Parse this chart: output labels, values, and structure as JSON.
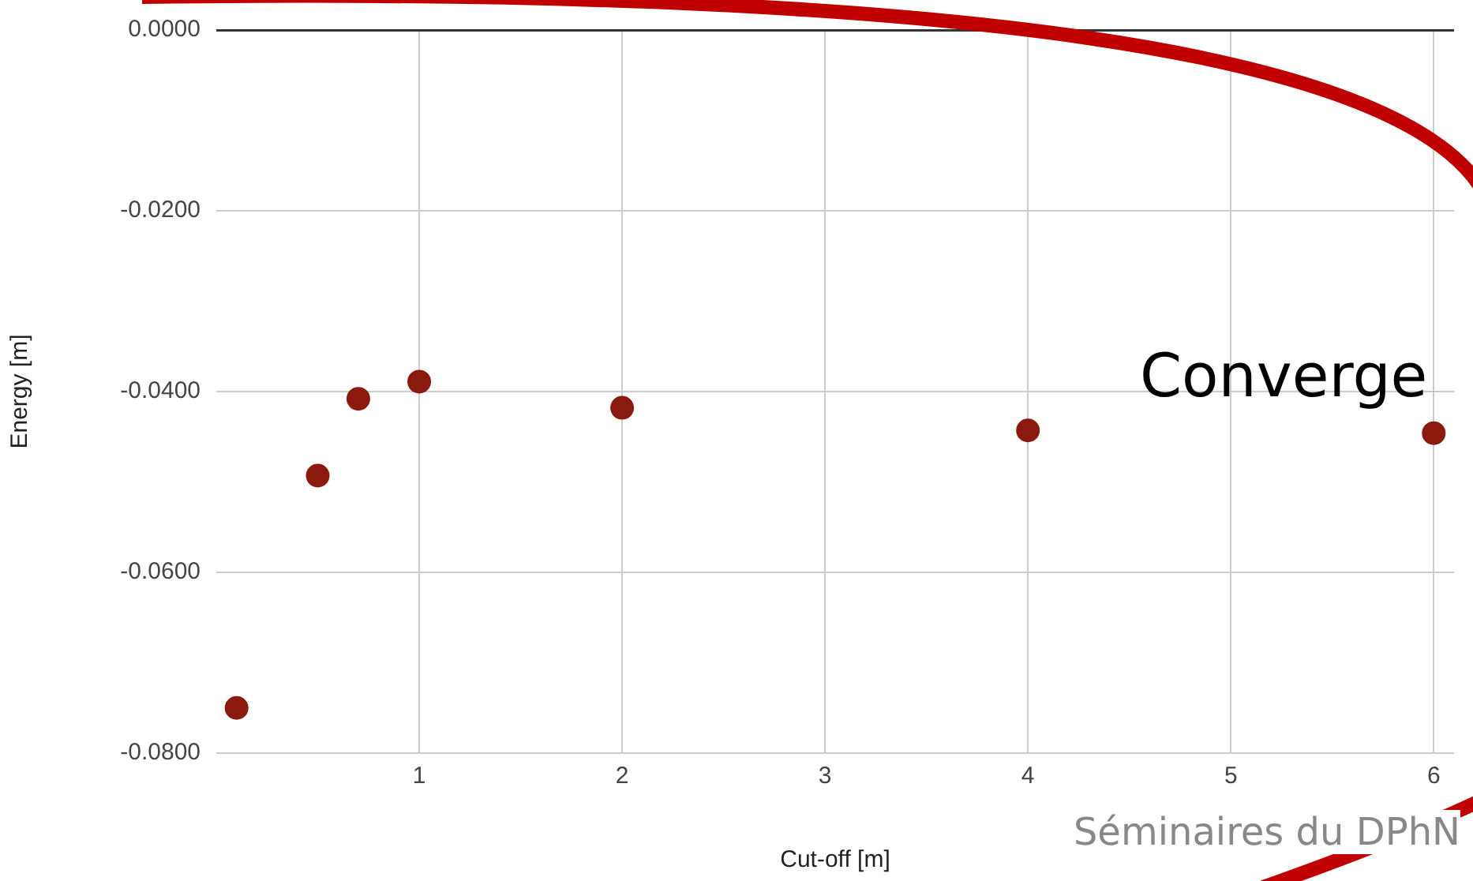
{
  "chart_data": {
    "type": "scatter",
    "xlabel": "Cut-off [m]",
    "ylabel": "Energy [m]",
    "x": [
      0.1,
      0.5,
      0.7,
      1,
      2,
      4,
      6
    ],
    "series": [
      {
        "color": "#8b1a0e",
        "values": [
          -0.075,
          -0.0493,
          -0.0408,
          -0.0389,
          -0.0418,
          -0.0443,
          -0.0446
        ]
      }
    ],
    "xlim": [
      0,
      6.1
    ],
    "xticks": [
      1,
      2,
      3,
      4,
      5,
      6
    ],
    "ylim": [
      -0.08,
      0
    ],
    "yticks": [
      {
        "value": 0,
        "label": "0.0000"
      },
      {
        "value": -0.02,
        "label": "-0.0200"
      },
      {
        "value": -0.04,
        "label": "-0.0400"
      },
      {
        "value": -0.06,
        "label": "-0.0600"
      },
      {
        "value": -0.08,
        "label": "-0.0800"
      }
    ],
    "grid": true,
    "legend": false,
    "marker": "circle",
    "annotations": [
      "Converge",
      "Séminaires du DPhN"
    ]
  }
}
